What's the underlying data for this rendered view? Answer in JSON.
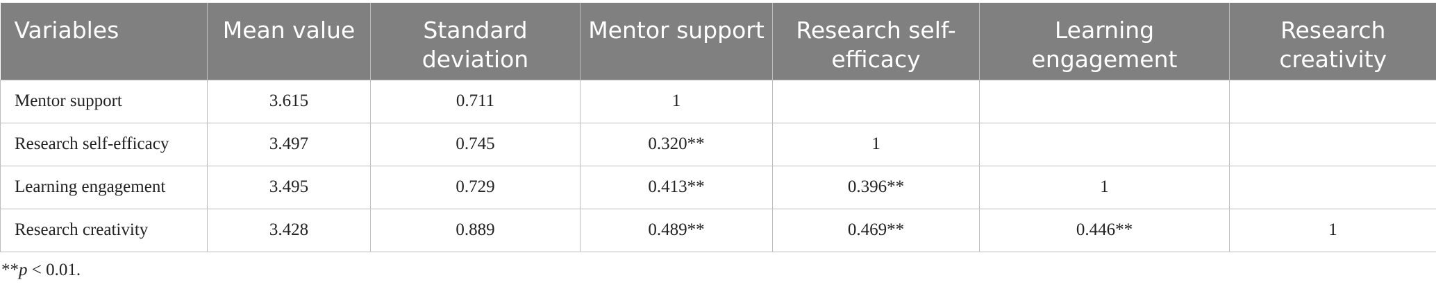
{
  "table": {
    "header": [
      "Variables",
      "Mean value",
      "Standard deviation",
      "Mentor support",
      "Research self-efficacy",
      "Learning engagement",
      "Research creativity"
    ],
    "rows": [
      [
        "Mentor support",
        "3.615",
        "0.711",
        "1"
      ],
      [
        "Research self-efficacy",
        "3.497",
        "0.745",
        "0.320**",
        "1"
      ],
      [
        "Learning engagement",
        "3.495",
        "0.729",
        "0.413**",
        "0.396**",
        "1"
      ],
      [
        "Research creativity",
        "3.428",
        "0.889",
        "0.489**",
        "0.469**",
        "0.446**",
        "1"
      ]
    ]
  },
  "footnote": {
    "marker": "**",
    "symbol": "p",
    "text": "< 0.01."
  }
}
